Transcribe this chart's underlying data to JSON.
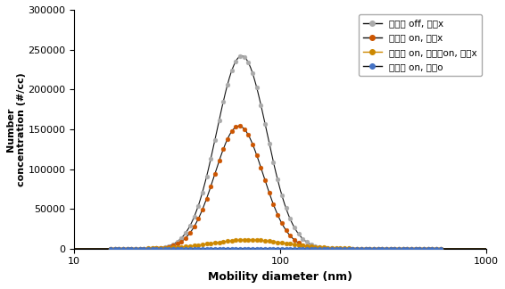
{
  "xlabel": "Mobility diameter (nm)",
  "ylabel": "Number\nconcentration (#/cc)",
  "xlim": [
    10,
    1000
  ],
  "ylim": [
    0,
    300000
  ],
  "yticks": [
    0,
    50000,
    100000,
    150000,
    200000,
    250000,
    300000
  ],
  "legend_labels": [
    "초음파 off, 필터x",
    "초음파 on, 필터x",
    "초음파 on, 하전기on, 필터x",
    "초음파 on, 필터o"
  ],
  "series": [
    {
      "label": "초음파 off, 필터x",
      "line_color": "#111111",
      "marker_color": "#aaaaaa",
      "peak": 242000,
      "peak_x": 65,
      "sigma": 0.28
    },
    {
      "label": "초음파 on, 필터x",
      "line_color": "#111111",
      "marker_color": "#cc5500",
      "peak": 154000,
      "peak_x": 63,
      "sigma": 0.27
    },
    {
      "label": "초음파 on, 하전기on, 필터x",
      "line_color": "#cc8800",
      "marker_color": "#cc8800",
      "peak": 11000,
      "peak_x": 70,
      "sigma": 0.42
    },
    {
      "label": "초음파 on, 필터o",
      "line_color": "#111111",
      "marker_color": "#4472c4",
      "peak": 300,
      "peak_x": 65,
      "sigma": 0.28
    }
  ],
  "background_color": "#ffffff",
  "figsize": [
    5.66,
    3.24
  ],
  "dpi": 100,
  "xlabel_fontsize": 9,
  "ylabel_fontsize": 8,
  "tick_fontsize": 8,
  "legend_fontsize": 7.5
}
